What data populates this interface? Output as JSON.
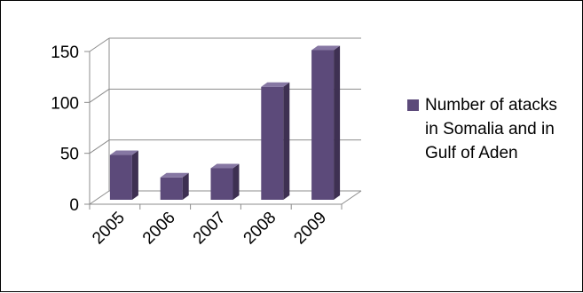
{
  "chart_data": {
    "type": "bar",
    "style": "3d-column",
    "categories": [
      "2005",
      "2006",
      "2007",
      "2008",
      "2009"
    ],
    "series": [
      {
        "name": "Number of atacks in Somalia and in Gulf of Aden",
        "values": [
          44,
          22,
          31,
          111,
          147
        ]
      }
    ],
    "y_ticks": [
      "0",
      "50",
      "100",
      "150"
    ],
    "ylim": [
      0,
      150
    ],
    "grid": true,
    "legend_position": "right",
    "colors": {
      "bar_front": "#5c4a7a",
      "bar_side": "#3e3052",
      "bar_top": "#8677a3",
      "grid": "#8c8c8c",
      "legend_swatch": "#5c4a7a"
    }
  }
}
